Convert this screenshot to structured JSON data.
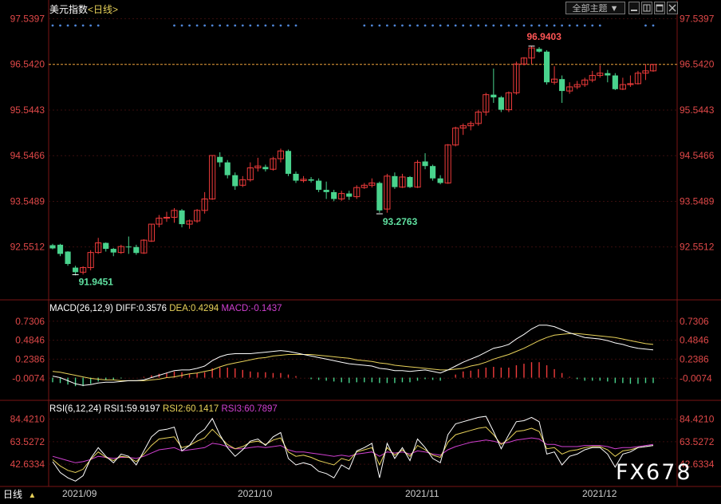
{
  "header": {
    "title": "美元指数",
    "period": "<日线>",
    "dropdown_label": "全部主题",
    "dropdown_arrow": "▼"
  },
  "price_axis": {
    "ticks": [
      "97.5397",
      "96.5420",
      "95.5443",
      "94.5466",
      "93.5489",
      "92.5512"
    ],
    "ref_line_value": 96.542,
    "ref_line_color": "#e7a23a"
  },
  "macd": {
    "label": "MACD(26,12,9)",
    "diff": "DIFF:0.3576",
    "dea": "DEA:0.4294",
    "macd": "MACD:-0.1437",
    "ticks": [
      "0.7306",
      "0.4846",
      "0.2386",
      "-0.0074"
    ]
  },
  "rsi": {
    "label": "RSI(6,12,24)",
    "rsi1": "RSI1:59.9197",
    "rsi2": "RSI2:60.1417",
    "rsi3": "RSI3:60.7897",
    "ticks": [
      "84.4210",
      "63.5272",
      "42.6334"
    ]
  },
  "xaxis": {
    "labels": [
      "2021/09",
      "2021/10",
      "2021/11",
      "2021/12"
    ]
  },
  "bottom": {
    "tab": "日线",
    "arrow": "▲"
  },
  "watermark": "FX678",
  "colors": {
    "up": "#ef3b3b",
    "down": "#49d38d",
    "dea": "#e8d25a",
    "macd_line": "#d040d0",
    "diff": "#ffffff"
  },
  "chart_data": {
    "type": "candlestick",
    "ylim": [
      91.5,
      97.6
    ],
    "annotations": [
      {
        "label": "91.9451",
        "value": 91.9451
      },
      {
        "label": "93.2763",
        "value": 93.2763
      },
      {
        "label": "96.9403",
        "value": 96.9403
      }
    ],
    "candles": [
      {
        "o": 92.59,
        "h": 92.62,
        "l": 92.5,
        "c": 92.52
      },
      {
        "o": 92.6,
        "h": 92.62,
        "l": 92.35,
        "c": 92.4
      },
      {
        "o": 92.45,
        "h": 92.46,
        "l": 92.14,
        "c": 92.18
      },
      {
        "o": 92.1,
        "h": 92.14,
        "l": 91.93,
        "c": 92.0
      },
      {
        "o": 92.0,
        "h": 92.13,
        "l": 91.95,
        "c": 92.1
      },
      {
        "o": 92.1,
        "h": 92.48,
        "l": 92.04,
        "c": 92.43
      },
      {
        "o": 92.43,
        "h": 92.75,
        "l": 92.4,
        "c": 92.64
      },
      {
        "o": 92.64,
        "h": 92.65,
        "l": 92.45,
        "c": 92.51
      },
      {
        "o": 92.51,
        "h": 92.53,
        "l": 92.35,
        "c": 92.43
      },
      {
        "o": 92.43,
        "h": 92.6,
        "l": 92.4,
        "c": 92.56
      },
      {
        "o": 92.56,
        "h": 92.78,
        "l": 92.4,
        "c": 92.55
      },
      {
        "o": 92.55,
        "h": 92.6,
        "l": 92.38,
        "c": 92.42
      },
      {
        "o": 92.42,
        "h": 92.72,
        "l": 92.4,
        "c": 92.7
      },
      {
        "o": 92.68,
        "h": 93.05,
        "l": 92.66,
        "c": 93.05
      },
      {
        "o": 93.05,
        "h": 93.25,
        "l": 92.98,
        "c": 93.18
      },
      {
        "o": 93.18,
        "h": 93.32,
        "l": 93.1,
        "c": 93.2
      },
      {
        "o": 93.2,
        "h": 93.4,
        "l": 93.08,
        "c": 93.35
      },
      {
        "o": 93.35,
        "h": 93.38,
        "l": 92.98,
        "c": 93.05
      },
      {
        "o": 93.05,
        "h": 93.15,
        "l": 92.95,
        "c": 93.12
      },
      {
        "o": 93.12,
        "h": 93.38,
        "l": 93.08,
        "c": 93.35
      },
      {
        "o": 93.35,
        "h": 93.75,
        "l": 93.28,
        "c": 93.6
      },
      {
        "o": 93.6,
        "h": 94.55,
        "l": 93.58,
        "c": 94.55
      },
      {
        "o": 94.52,
        "h": 94.62,
        "l": 94.3,
        "c": 94.4
      },
      {
        "o": 94.4,
        "h": 94.45,
        "l": 94.05,
        "c": 94.12
      },
      {
        "o": 94.12,
        "h": 94.18,
        "l": 93.8,
        "c": 93.88
      },
      {
        "o": 93.9,
        "h": 94.1,
        "l": 93.86,
        "c": 94.02
      },
      {
        "o": 94.02,
        "h": 94.4,
        "l": 93.98,
        "c": 94.28
      },
      {
        "o": 94.28,
        "h": 94.5,
        "l": 94.2,
        "c": 94.32
      },
      {
        "o": 94.3,
        "h": 94.35,
        "l": 94.2,
        "c": 94.25
      },
      {
        "o": 94.25,
        "h": 94.52,
        "l": 94.22,
        "c": 94.48
      },
      {
        "o": 94.48,
        "h": 94.7,
        "l": 94.4,
        "c": 94.65
      },
      {
        "o": 94.65,
        "h": 94.68,
        "l": 94.1,
        "c": 94.15
      },
      {
        "o": 94.15,
        "h": 94.2,
        "l": 93.95,
        "c": 94.0
      },
      {
        "o": 94.0,
        "h": 94.1,
        "l": 93.96,
        "c": 94.03
      },
      {
        "o": 94.03,
        "h": 94.08,
        "l": 93.96,
        "c": 94.0
      },
      {
        "o": 94.0,
        "h": 94.05,
        "l": 93.75,
        "c": 93.8
      },
      {
        "o": 93.8,
        "h": 93.98,
        "l": 93.6,
        "c": 93.75
      },
      {
        "o": 93.75,
        "h": 93.8,
        "l": 93.55,
        "c": 93.6
      },
      {
        "o": 93.6,
        "h": 93.78,
        "l": 93.56,
        "c": 93.72
      },
      {
        "o": 93.72,
        "h": 93.78,
        "l": 93.58,
        "c": 93.65
      },
      {
        "o": 93.65,
        "h": 93.9,
        "l": 93.6,
        "c": 93.85
      },
      {
        "o": 93.85,
        "h": 93.95,
        "l": 93.82,
        "c": 93.9
      },
      {
        "o": 93.9,
        "h": 94.05,
        "l": 93.85,
        "c": 93.95
      },
      {
        "o": 93.95,
        "h": 93.98,
        "l": 93.3,
        "c": 93.35
      },
      {
        "o": 93.38,
        "h": 94.15,
        "l": 93.3,
        "c": 94.1
      },
      {
        "o": 94.1,
        "h": 94.18,
        "l": 93.82,
        "c": 93.86
      },
      {
        "o": 93.86,
        "h": 94.15,
        "l": 93.84,
        "c": 94.08
      },
      {
        "o": 94.08,
        "h": 94.1,
        "l": 93.84,
        "c": 93.86
      },
      {
        "o": 93.86,
        "h": 94.45,
        "l": 93.84,
        "c": 94.4
      },
      {
        "o": 94.42,
        "h": 94.6,
        "l": 94.25,
        "c": 94.32
      },
      {
        "o": 94.32,
        "h": 94.35,
        "l": 94.0,
        "c": 94.05
      },
      {
        "o": 94.05,
        "h": 94.12,
        "l": 93.92,
        "c": 93.95
      },
      {
        "o": 93.95,
        "h": 94.8,
        "l": 93.93,
        "c": 94.78
      },
      {
        "o": 94.78,
        "h": 95.18,
        "l": 94.75,
        "c": 95.15
      },
      {
        "o": 95.15,
        "h": 95.25,
        "l": 95.0,
        "c": 95.2
      },
      {
        "o": 95.2,
        "h": 95.3,
        "l": 95.1,
        "c": 95.25
      },
      {
        "o": 95.25,
        "h": 95.55,
        "l": 95.2,
        "c": 95.5
      },
      {
        "o": 95.5,
        "h": 95.92,
        "l": 95.42,
        "c": 95.88
      },
      {
        "o": 95.88,
        "h": 96.45,
        "l": 95.7,
        "c": 95.82
      },
      {
        "o": 95.82,
        "h": 95.85,
        "l": 95.5,
        "c": 95.55
      },
      {
        "o": 95.55,
        "h": 95.95,
        "l": 95.5,
        "c": 95.92
      },
      {
        "o": 95.92,
        "h": 96.6,
        "l": 95.88,
        "c": 96.55
      },
      {
        "o": 96.55,
        "h": 96.7,
        "l": 96.52,
        "c": 96.68
      },
      {
        "o": 96.68,
        "h": 96.94,
        "l": 96.55,
        "c": 96.9
      },
      {
        "o": 96.88,
        "h": 96.92,
        "l": 96.8,
        "c": 96.82
      },
      {
        "o": 96.82,
        "h": 96.85,
        "l": 96.1,
        "c": 96.15
      },
      {
        "o": 96.15,
        "h": 96.5,
        "l": 96.1,
        "c": 96.22
      },
      {
        "o": 96.22,
        "h": 96.3,
        "l": 95.7,
        "c": 95.96
      },
      {
        "o": 95.96,
        "h": 96.15,
        "l": 95.9,
        "c": 96.05
      },
      {
        "o": 96.05,
        "h": 96.18,
        "l": 96.0,
        "c": 96.1
      },
      {
        "o": 96.1,
        "h": 96.25,
        "l": 96.05,
        "c": 96.2
      },
      {
        "o": 96.2,
        "h": 96.4,
        "l": 96.15,
        "c": 96.3
      },
      {
        "o": 96.3,
        "h": 96.52,
        "l": 96.25,
        "c": 96.35
      },
      {
        "o": 96.35,
        "h": 96.42,
        "l": 96.15,
        "c": 96.3
      },
      {
        "o": 96.3,
        "h": 96.35,
        "l": 95.98,
        "c": 96.0
      },
      {
        "o": 96.0,
        "h": 96.25,
        "l": 95.98,
        "c": 96.1
      },
      {
        "o": 96.1,
        "h": 96.3,
        "l": 96.05,
        "c": 96.12
      },
      {
        "o": 96.12,
        "h": 96.4,
        "l": 96.1,
        "c": 96.35
      },
      {
        "o": 96.35,
        "h": 96.55,
        "l": 96.2,
        "c": 96.4
      },
      {
        "o": 96.4,
        "h": 96.55,
        "l": 96.38,
        "c": 96.54
      }
    ],
    "macd_ylim": [
      -0.17,
      0.78
    ],
    "macd_dif": [
      0.02,
      0.0,
      -0.04,
      -0.08,
      -0.1,
      -0.09,
      -0.07,
      -0.06,
      -0.06,
      -0.05,
      -0.04,
      -0.04,
      -0.03,
      0.0,
      0.03,
      0.06,
      0.09,
      0.1,
      0.1,
      0.12,
      0.15,
      0.22,
      0.27,
      0.3,
      0.31,
      0.31,
      0.31,
      0.32,
      0.33,
      0.34,
      0.35,
      0.34,
      0.32,
      0.3,
      0.28,
      0.26,
      0.24,
      0.22,
      0.2,
      0.18,
      0.17,
      0.16,
      0.15,
      0.12,
      0.11,
      0.09,
      0.09,
      0.08,
      0.09,
      0.1,
      0.08,
      0.06,
      0.1,
      0.15,
      0.2,
      0.24,
      0.28,
      0.33,
      0.38,
      0.4,
      0.43,
      0.5,
      0.56,
      0.63,
      0.68,
      0.68,
      0.66,
      0.62,
      0.58,
      0.55,
      0.52,
      0.51,
      0.5,
      0.48,
      0.45,
      0.43,
      0.4,
      0.38,
      0.37,
      0.36
    ],
    "macd_dea": [
      0.08,
      0.07,
      0.05,
      0.03,
      0.01,
      -0.01,
      -0.02,
      -0.03,
      -0.03,
      -0.04,
      -0.04,
      -0.04,
      -0.04,
      -0.03,
      -0.02,
      0.0,
      0.01,
      0.03,
      0.05,
      0.06,
      0.08,
      0.1,
      0.14,
      0.17,
      0.19,
      0.21,
      0.23,
      0.25,
      0.26,
      0.28,
      0.29,
      0.3,
      0.3,
      0.3,
      0.3,
      0.29,
      0.28,
      0.27,
      0.26,
      0.25,
      0.23,
      0.22,
      0.21,
      0.19,
      0.18,
      0.16,
      0.15,
      0.14,
      0.13,
      0.12,
      0.11,
      0.1,
      0.1,
      0.11,
      0.12,
      0.15,
      0.17,
      0.2,
      0.24,
      0.27,
      0.3,
      0.34,
      0.38,
      0.43,
      0.48,
      0.52,
      0.55,
      0.56,
      0.57,
      0.57,
      0.56,
      0.55,
      0.54,
      0.53,
      0.52,
      0.5,
      0.48,
      0.46,
      0.44,
      0.43
    ],
    "macd_hist": [
      -0.06,
      -0.07,
      -0.09,
      -0.11,
      -0.11,
      -0.08,
      -0.05,
      -0.03,
      -0.03,
      -0.01,
      0.0,
      0.0,
      0.01,
      0.03,
      0.05,
      0.06,
      0.08,
      0.07,
      0.05,
      0.06,
      0.07,
      0.12,
      0.13,
      0.13,
      0.12,
      0.1,
      0.08,
      0.07,
      0.07,
      0.06,
      0.06,
      0.04,
      0.02,
      0.0,
      -0.02,
      -0.03,
      -0.04,
      -0.05,
      -0.06,
      -0.07,
      -0.06,
      -0.06,
      -0.06,
      -0.07,
      -0.07,
      -0.07,
      -0.06,
      -0.06,
      -0.04,
      -0.02,
      -0.03,
      -0.04,
      0.0,
      0.04,
      0.08,
      0.09,
      0.11,
      0.13,
      0.14,
      0.13,
      0.13,
      0.16,
      0.18,
      0.2,
      0.2,
      0.16,
      0.11,
      0.06,
      0.01,
      -0.02,
      -0.04,
      -0.04,
      -0.04,
      -0.05,
      -0.07,
      -0.07,
      -0.08,
      -0.08,
      -0.07,
      -0.07
    ],
    "rsi_ylim": [
      25,
      90
    ],
    "rsi1": [
      45,
      35,
      30,
      27,
      32,
      48,
      58,
      50,
      44,
      52,
      50,
      42,
      55,
      68,
      74,
      75,
      77,
      55,
      60,
      70,
      75,
      85,
      70,
      58,
      50,
      56,
      64,
      66,
      60,
      68,
      72,
      48,
      42,
      44,
      42,
      36,
      34,
      30,
      42,
      38,
      55,
      58,
      62,
      30,
      62,
      48,
      58,
      46,
      66,
      58,
      48,
      44,
      70,
      80,
      82,
      84,
      86,
      87,
      73,
      57,
      70,
      82,
      83,
      86,
      82,
      52,
      54,
      42,
      50,
      52,
      56,
      58,
      58,
      52,
      40,
      52,
      54,
      58,
      59,
      60
    ],
    "rsi2": [
      47,
      41,
      37,
      35,
      38,
      47,
      54,
      49,
      46,
      50,
      49,
      45,
      52,
      60,
      66,
      67,
      68,
      58,
      60,
      64,
      67,
      75,
      68,
      61,
      57,
      59,
      63,
      64,
      61,
      65,
      67,
      54,
      50,
      51,
      49,
      46,
      44,
      42,
      48,
      46,
      54,
      56,
      58,
      42,
      58,
      51,
      56,
      50,
      60,
      56,
      51,
      49,
      63,
      70,
      72,
      74,
      76,
      77,
      70,
      61,
      66,
      73,
      74,
      76,
      73,
      57,
      58,
      52,
      55,
      56,
      58,
      59,
      59,
      56,
      50,
      55,
      56,
      58,
      59,
      60
    ],
    "rsi3": [
      50,
      48,
      46,
      44,
      45,
      47,
      50,
      49,
      48,
      49,
      49,
      48,
      50,
      53,
      56,
      57,
      58,
      55,
      56,
      57,
      58,
      62,
      61,
      59,
      57,
      57,
      58,
      59,
      58,
      59,
      60,
      56,
      54,
      54,
      53,
      52,
      51,
      50,
      51,
      50,
      52,
      53,
      54,
      50,
      54,
      53,
      54,
      52,
      55,
      54,
      52,
      51,
      56,
      59,
      61,
      63,
      64,
      65,
      64,
      62,
      63,
      65,
      66,
      67,
      66,
      61,
      61,
      59,
      59,
      59,
      60,
      60,
      60,
      59,
      57,
      58,
      58,
      59,
      60,
      61
    ]
  }
}
